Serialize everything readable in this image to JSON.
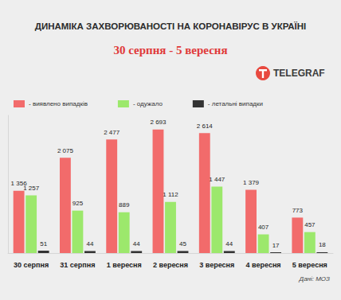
{
  "chart_data": {
    "type": "bar",
    "title": "ДИНАМІКА ЗАХВОРЮВАНОСТІ НА КОРОНАВІРУС В УКРАЇНІ",
    "subtitle": "30 серпня - 5 вересня",
    "logo": "TELEGRAF",
    "source": "Дані: МОЗ",
    "categories": [
      "30 серпня",
      "31 серпня",
      "1 вересня",
      "2 вересня",
      "3 вересня",
      "4 вересня",
      "5 вересня"
    ],
    "series": [
      {
        "name": "- виявлено випадків",
        "color": "#f26b6b",
        "values": [
          1356,
          2075,
          2477,
          2693,
          2614,
          1379,
          773
        ],
        "value_labels": [
          "1 356",
          "2 075",
          "2 477",
          "2 693",
          "2 614",
          "1 379",
          "773"
        ]
      },
      {
        "name": "- одужало",
        "color": "#9ce86c",
        "values": [
          1257,
          925,
          889,
          1112,
          1447,
          407,
          457
        ],
        "value_labels": [
          "1 257",
          "925",
          "889",
          "1 112",
          "1 447",
          "407",
          "457"
        ]
      },
      {
        "name": "- летальні випадки",
        "color": "#333333",
        "values": [
          51,
          44,
          44,
          45,
          44,
          17,
          18
        ],
        "value_labels": [
          "51",
          "44",
          "44",
          "45",
          "44",
          "17",
          "18"
        ]
      }
    ],
    "ylim": [
      0,
      3000
    ],
    "grid": false,
    "legend": "top-left",
    "data_labels": true,
    "tick_labels": "x"
  }
}
